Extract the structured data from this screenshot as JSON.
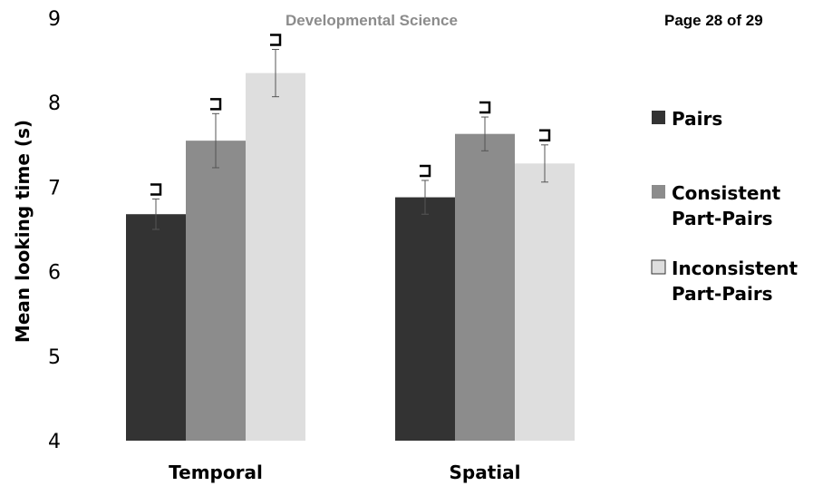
{
  "header": {
    "journal": "Developmental Science",
    "page": "Page 28 of 29"
  },
  "colors": {
    "pairs": "#333333",
    "consistent": "#8c8c8c",
    "inconsistent": "#dedede",
    "error_bar": "#555555"
  },
  "chart_data": {
    "type": "bar",
    "categories": [
      "Temporal",
      "Spatial"
    ],
    "ylabel": "Mean looking time (s)",
    "ylim": [
      4,
      9
    ],
    "yticks": [
      4,
      5,
      6,
      7,
      8,
      9
    ],
    "legend_position": "right",
    "grid": false,
    "series": [
      {
        "name": "Pairs",
        "legend_lines": [
          "Pairs"
        ],
        "values": [
          6.68,
          6.88
        ],
        "errors": [
          0.18,
          0.2
        ],
        "color": "#333333"
      },
      {
        "name": "Consistent Part-Pairs",
        "legend_lines": [
          "Consistent",
          "Part-Pairs"
        ],
        "values": [
          7.55,
          7.63
        ],
        "errors": [
          0.32,
          0.2
        ],
        "color": "#8c8c8c"
      },
      {
        "name": "Inconsistent Part-Pairs",
        "legend_lines": [
          "Inconsistent",
          "Part-Pairs"
        ],
        "values": [
          8.35,
          7.28
        ],
        "errors": [
          0.28,
          0.22
        ],
        "color": "#dedede"
      }
    ]
  }
}
